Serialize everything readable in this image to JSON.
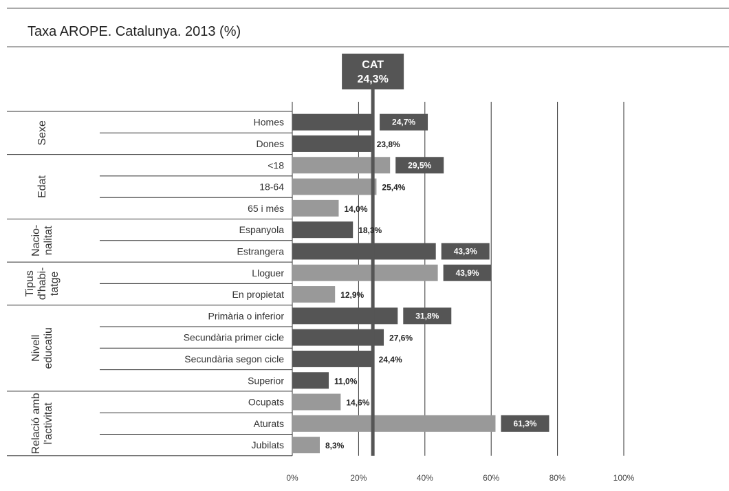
{
  "chart_data": {
    "type": "bar",
    "orientation": "horizontal",
    "title": "Taxa AROPE. Catalunya. 2013 (%)",
    "xlim": [
      0,
      100
    ],
    "x_ticks": [
      0,
      20,
      40,
      60,
      80,
      100
    ],
    "x_tick_labels": [
      "0%",
      "20%",
      "40%",
      "60%",
      "80%",
      "100%"
    ],
    "grid": true,
    "reference": {
      "label": "CAT",
      "value": 24.3,
      "value_label": "24,3%"
    },
    "colors": {
      "dark": "#555555",
      "light": "#999999",
      "reference": "#555555"
    },
    "groups": [
      {
        "name": [
          "Sexe"
        ],
        "shade": "dark",
        "items": [
          {
            "category": "Homes",
            "value": 24.7,
            "label": "24,7%",
            "boxed": true
          },
          {
            "category": "Dones",
            "value": 23.8,
            "label": "23,8%",
            "boxed": false
          }
        ]
      },
      {
        "name": [
          "Edat"
        ],
        "shade": "light",
        "items": [
          {
            "category": "<18",
            "value": 29.5,
            "label": "29,5%",
            "boxed": true
          },
          {
            "category": "18-64",
            "value": 25.4,
            "label": "25,4%",
            "boxed": false
          },
          {
            "category": "65 i més",
            "value": 14.0,
            "label": "14,0%",
            "boxed": false
          }
        ]
      },
      {
        "name": [
          "Nacio-",
          "nalitat"
        ],
        "shade": "dark",
        "items": [
          {
            "category": "Espanyola",
            "value": 18.3,
            "label": "18,3%",
            "boxed": false
          },
          {
            "category": "Estrangera",
            "value": 43.3,
            "label": "43,3%",
            "boxed": true
          }
        ]
      },
      {
        "name": [
          "Tipus",
          "d'habi-",
          "tatge"
        ],
        "shade": "light",
        "items": [
          {
            "category": "Lloguer",
            "value": 43.9,
            "label": "43,9%",
            "boxed": true
          },
          {
            "category": "En propietat",
            "value": 12.9,
            "label": "12,9%",
            "boxed": false
          }
        ]
      },
      {
        "name": [
          "Nivell",
          "educatiu"
        ],
        "shade": "dark",
        "items": [
          {
            "category": "Primària o inferior",
            "value": 31.8,
            "label": "31,8%",
            "boxed": true
          },
          {
            "category": "Secundària primer cicle",
            "value": 27.6,
            "label": "27,6%",
            "boxed": false
          },
          {
            "category": "Secundària segon cicle",
            "value": 24.4,
            "label": "24,4%",
            "boxed": false
          },
          {
            "category": "Superior",
            "value": 11.0,
            "label": "11,0%",
            "boxed": false
          }
        ]
      },
      {
        "name": [
          "Relació amb",
          "l'activitat"
        ],
        "shade": "light",
        "items": [
          {
            "category": "Ocupats",
            "value": 14.6,
            "label": "14,6%",
            "boxed": false
          },
          {
            "category": "Aturats",
            "value": 61.3,
            "label": "61,3%",
            "boxed": true
          },
          {
            "category": "Jubilats",
            "value": 8.3,
            "label": "8,3%",
            "boxed": false
          }
        ]
      }
    ]
  }
}
